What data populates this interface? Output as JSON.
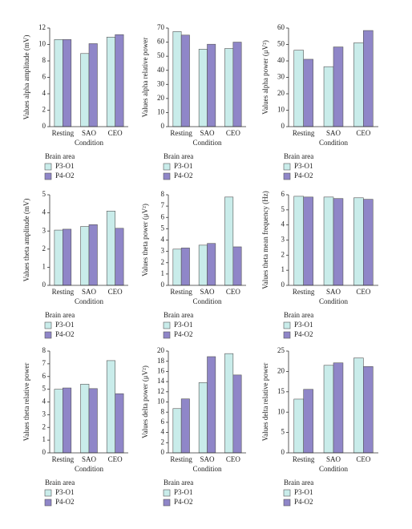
{
  "chart_data": [
    {
      "type": "bar",
      "ylabel": "Values alpha amplitude (mV)",
      "xlabel": "Condition",
      "categories": [
        "Resting",
        "SAO",
        "CEO"
      ],
      "ylim": [
        0,
        12
      ],
      "yticks": [
        0,
        2,
        4,
        6,
        8,
        10,
        12
      ],
      "legend_title": "Brain area",
      "series": [
        {
          "name": "P3-O1",
          "color": "#c9ecea",
          "values": [
            10.6,
            8.9,
            10.9
          ]
        },
        {
          "name": "P4-O2",
          "color": "#8f86c8",
          "values": [
            10.6,
            10.1,
            11.2
          ]
        }
      ]
    },
    {
      "type": "bar",
      "ylabel": "Values alpha relative power",
      "xlabel": "Condition",
      "categories": [
        "Resting",
        "SAO",
        "CEO"
      ],
      "ylim": [
        0,
        70
      ],
      "yticks": [
        0,
        10,
        20,
        30,
        40,
        50,
        60,
        70
      ],
      "legend_title": "Brain area",
      "series": [
        {
          "name": "P3-O1",
          "color": "#c9ecea",
          "values": [
            67.5,
            55,
            55.5
          ]
        },
        {
          "name": "P4-O2",
          "color": "#8f86c8",
          "values": [
            65,
            58.5,
            60
          ]
        }
      ]
    },
    {
      "type": "bar",
      "ylabel": "Values alpha power (μV²)",
      "xlabel": "Condition",
      "categories": [
        "Resting",
        "SAO",
        "CEO"
      ],
      "ylim": [
        0,
        60
      ],
      "yticks": [
        0,
        10,
        20,
        30,
        40,
        50,
        60
      ],
      "legend_title": "Brain area",
      "series": [
        {
          "name": "P3-O1",
          "color": "#c9ecea",
          "values": [
            46.5,
            36.5,
            51
          ]
        },
        {
          "name": "P4-O2",
          "color": "#8f86c8",
          "values": [
            41,
            48.5,
            58.5
          ]
        }
      ]
    },
    {
      "type": "bar",
      "ylabel": "Values theta amplitude (mV)",
      "xlabel": "Condition",
      "categories": [
        "Resting",
        "SAO",
        "CEO"
      ],
      "ylim": [
        0,
        5
      ],
      "yticks": [
        0,
        1,
        2,
        3,
        4,
        5
      ],
      "legend_title": "Brain area",
      "series": [
        {
          "name": "P3-O1",
          "color": "#c9ecea",
          "values": [
            3.05,
            3.25,
            4.1
          ]
        },
        {
          "name": "P4-O2",
          "color": "#8f86c8",
          "values": [
            3.1,
            3.35,
            3.15
          ]
        }
      ]
    },
    {
      "type": "bar",
      "ylabel": "Values theta power (μV²)",
      "xlabel": "Condition",
      "categories": [
        "Resting",
        "SAO",
        "CEO"
      ],
      "ylim": [
        0,
        8
      ],
      "yticks": [
        0,
        1,
        2,
        3,
        4,
        5,
        6,
        7,
        8
      ],
      "legend_title": "Brain area",
      "series": [
        {
          "name": "P3-O1",
          "color": "#c9ecea",
          "values": [
            3.2,
            3.55,
            7.8
          ]
        },
        {
          "name": "P4-O2",
          "color": "#8f86c8",
          "values": [
            3.3,
            3.7,
            3.4
          ]
        }
      ]
    },
    {
      "type": "bar",
      "ylabel": "Values theta mean frequency (Hz)",
      "xlabel": "Condition",
      "categories": [
        "Resting",
        "SAO",
        "CEO"
      ],
      "ylim": [
        0,
        6
      ],
      "yticks": [
        0,
        1,
        2,
        3,
        4,
        5,
        6
      ],
      "legend_title": "Brain area",
      "series": [
        {
          "name": "P3-O1",
          "color": "#c9ecea",
          "values": [
            5.9,
            5.85,
            5.8
          ]
        },
        {
          "name": "P4-O2",
          "color": "#8f86c8",
          "values": [
            5.85,
            5.75,
            5.7
          ]
        }
      ]
    },
    {
      "type": "bar",
      "ylabel": "Values theta relative power",
      "xlabel": "Condition",
      "categories": [
        "Resting",
        "SAO",
        "CEO"
      ],
      "ylim": [
        0,
        8
      ],
      "yticks": [
        0,
        1,
        2,
        3,
        4,
        5,
        6,
        7,
        8
      ],
      "legend_title": "Brain area",
      "series": [
        {
          "name": "P3-O1",
          "color": "#c9ecea",
          "values": [
            5.0,
            5.4,
            7.25
          ]
        },
        {
          "name": "P4-O2",
          "color": "#8f86c8",
          "values": [
            5.1,
            5.05,
            4.65
          ]
        }
      ]
    },
    {
      "type": "bar",
      "ylabel": "Values delta power (μV²)",
      "xlabel": "Condition",
      "categories": [
        "Resting",
        "SAO",
        "CEO"
      ],
      "ylim": [
        0,
        20
      ],
      "yticks": [
        0,
        2,
        4,
        6,
        8,
        10,
        12,
        14,
        16,
        18,
        20
      ],
      "legend_title": "Brain area",
      "series": [
        {
          "name": "P3-O1",
          "color": "#c9ecea",
          "values": [
            8.7,
            13.8,
            19.5
          ]
        },
        {
          "name": "P4-O2",
          "color": "#8f86c8",
          "values": [
            10.6,
            18.9,
            15.3
          ]
        }
      ]
    },
    {
      "type": "bar",
      "ylabel": "Values delta relative power",
      "xlabel": "Condition",
      "categories": [
        "Resting",
        "SAO",
        "CEO"
      ],
      "ylim": [
        0,
        25
      ],
      "yticks": [
        0,
        5,
        10,
        15,
        20,
        25
      ],
      "legend_title": "Brain area",
      "series": [
        {
          "name": "P3-O1",
          "color": "#c9ecea",
          "values": [
            13.2,
            21.5,
            23.3
          ]
        },
        {
          "name": "P4-O2",
          "color": "#8f86c8",
          "values": [
            15.6,
            22.1,
            21.2
          ]
        }
      ]
    }
  ]
}
